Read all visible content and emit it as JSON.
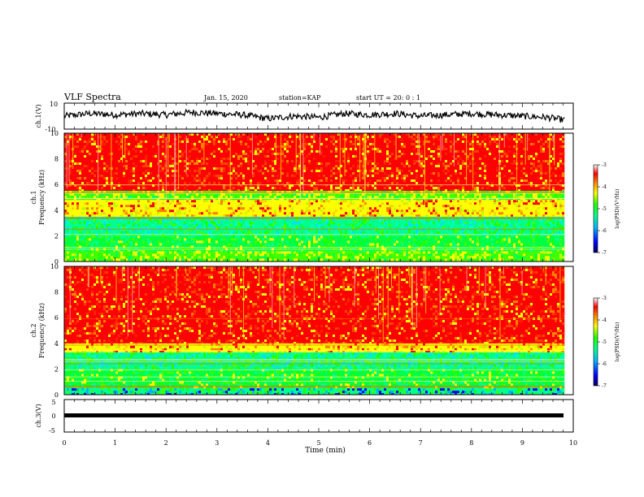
{
  "header": {
    "title": "VLF Spectra",
    "date": "Jan. 15, 2020",
    "station": "station=KAP",
    "start": "start UT =  20: 0 : 1"
  },
  "colors": {
    "colormap": [
      "#000060",
      "#0000ff",
      "#00b0ff",
      "#00ff90",
      "#20ff00",
      "#ffff00",
      "#ff8000",
      "#ff0000",
      "#ffffff"
    ],
    "trace": "#000000"
  },
  "chart_data": [
    {
      "type": "line",
      "panel": "ch1-voltage",
      "ylabel": "ch.1(V)",
      "ylim": [
        -10,
        10
      ],
      "yticks": [
        "10",
        "-10"
      ],
      "x": [
        0,
        0.5,
        1,
        1.5,
        2,
        2.5,
        3,
        3.5,
        4,
        4.5,
        5,
        5.5,
        6,
        6.5,
        7,
        7.5,
        8,
        8.5,
        9,
        9.5,
        9.83
      ],
      "values": [
        0,
        2,
        1,
        2,
        1,
        3,
        2,
        1,
        -2,
        0,
        -1,
        2,
        1,
        2,
        0,
        1,
        2,
        1,
        0,
        -1,
        -3
      ]
    },
    {
      "type": "heatmap",
      "panel": "ch1-spectrogram",
      "ylabel": "ch.1\nFrequency (kHz)",
      "ylim": [
        0,
        10
      ],
      "yticks": [
        "0",
        "2",
        "4",
        "6",
        "8",
        "10"
      ],
      "colorbar": {
        "label": "log(PSD)(V²/Hz)",
        "range": [
          -7,
          -3
        ],
        "ticks": [
          "-3",
          "-4",
          "-5",
          "-6",
          "-7"
        ]
      },
      "bands": [
        {
          "kHz": [
            0,
            0.8
          ],
          "level": "green-yellow"
        },
        {
          "kHz": [
            0.8,
            2
          ],
          "level": "green"
        },
        {
          "kHz": [
            2,
            3.5
          ],
          "level": "cyan-green"
        },
        {
          "kHz": [
            3.5,
            4.8
          ],
          "level": "yellow"
        },
        {
          "kHz": [
            4.8,
            5.5
          ],
          "level": "green-yellow"
        },
        {
          "kHz": [
            5.5,
            10
          ],
          "level": "red"
        }
      ]
    },
    {
      "type": "heatmap",
      "panel": "ch2-spectrogram",
      "ylabel": "ch.2\nFrequency (kHz)",
      "ylim": [
        0,
        10
      ],
      "yticks": [
        "0",
        "2",
        "4",
        "6",
        "8",
        "10"
      ],
      "colorbar": {
        "label": "log(PSD)(V²/Hz)",
        "range": [
          -7,
          -3
        ],
        "ticks": [
          "-3",
          "-4",
          "-5",
          "-6",
          "-7"
        ]
      },
      "bands": [
        {
          "kHz": [
            0,
            0.5
          ],
          "level": "green-blue"
        },
        {
          "kHz": [
            0.5,
            2
          ],
          "level": "green"
        },
        {
          "kHz": [
            2,
            3.3
          ],
          "level": "cyan-green"
        },
        {
          "kHz": [
            3.3,
            4
          ],
          "level": "yellow"
        },
        {
          "kHz": [
            4,
            10
          ],
          "level": "red"
        }
      ]
    },
    {
      "type": "line",
      "panel": "ch3-voltage",
      "ylabel": "ch.3(V)",
      "ylim": [
        -5,
        5
      ],
      "yticks": [
        "5",
        "0",
        "-5"
      ],
      "x": [
        0,
        9.83
      ],
      "values": [
        0,
        0
      ],
      "xlabel": "Time (min)",
      "xlim": [
        0,
        10
      ],
      "xticks": [
        "0",
        "1",
        "2",
        "3",
        "4",
        "5",
        "6",
        "7",
        "8",
        "9",
        "10"
      ]
    }
  ]
}
